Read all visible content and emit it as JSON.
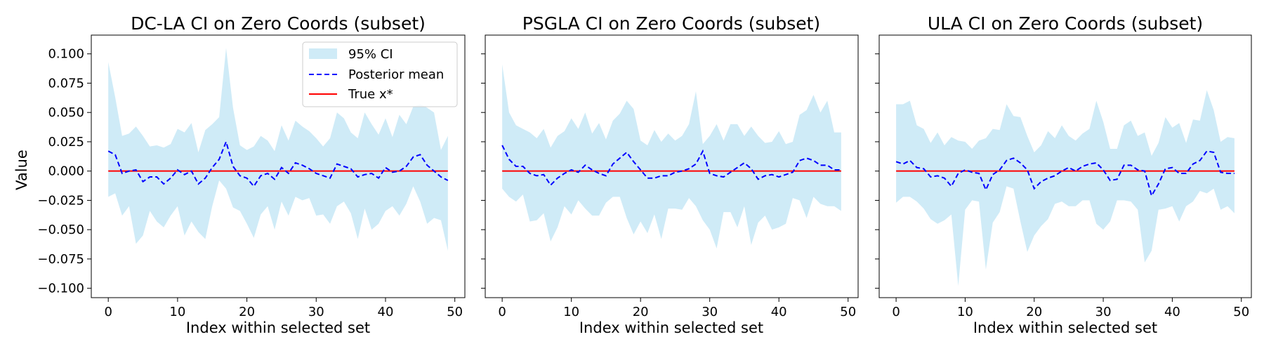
{
  "figure": {
    "ylabel": "Value",
    "ylim": [
      -0.108,
      0.116
    ],
    "yticks": [
      -0.1,
      -0.075,
      -0.05,
      -0.025,
      0.0,
      0.025,
      0.05,
      0.075,
      0.1
    ],
    "ytick_labels": [
      "−0.100",
      "−0.075",
      "−0.050",
      "−0.025",
      "0.000",
      "0.025",
      "0.050",
      "0.075",
      "0.100"
    ],
    "xlim": [
      -2.45,
      51.45
    ],
    "xticks": [
      0,
      10,
      20,
      30,
      40,
      50
    ],
    "xtick_labels": [
      "0",
      "10",
      "20",
      "30",
      "40",
      "50"
    ],
    "colors": {
      "ci_fill": "#87ceeb",
      "mean_line": "#0000ff",
      "true_line": "#ff0000"
    },
    "legend": {
      "placement": "top-right of first panel",
      "entries": [
        "95% CI",
        "Posterior mean",
        "True x*"
      ]
    }
  },
  "chart_data": [
    {
      "type": "area",
      "title": "DC-LA CI on Zero Coords (subset)",
      "xlabel": "Index within selected set",
      "ylabel": "Value",
      "x": [
        0,
        1,
        2,
        3,
        4,
        5,
        6,
        7,
        8,
        9,
        10,
        11,
        12,
        13,
        14,
        15,
        16,
        17,
        18,
        19,
        20,
        21,
        22,
        23,
        24,
        25,
        26,
        27,
        28,
        29,
        30,
        31,
        32,
        33,
        34,
        35,
        36,
        37,
        38,
        39,
        40,
        41,
        42,
        43,
        44,
        45,
        46,
        47,
        48,
        49
      ],
      "series": [
        {
          "name": "95% CI",
          "kind": "band",
          "upper": [
            0.093,
            0.063,
            0.03,
            0.032,
            0.038,
            0.03,
            0.021,
            0.022,
            0.02,
            0.023,
            0.036,
            0.033,
            0.041,
            0.016,
            0.035,
            0.04,
            0.046,
            0.105,
            0.054,
            0.022,
            0.018,
            0.021,
            0.03,
            0.026,
            0.017,
            0.039,
            0.026,
            0.043,
            0.038,
            0.034,
            0.028,
            0.021,
            0.028,
            0.05,
            0.045,
            0.033,
            0.028,
            0.05,
            0.04,
            0.031,
            0.045,
            0.029,
            0.048,
            0.04,
            0.055,
            0.057,
            0.054,
            0.05,
            0.018,
            0.03
          ],
          "lower": [
            -0.022,
            -0.019,
            -0.038,
            -0.03,
            -0.062,
            -0.055,
            -0.034,
            -0.043,
            -0.048,
            -0.038,
            -0.03,
            -0.055,
            -0.043,
            -0.052,
            -0.058,
            -0.03,
            -0.008,
            -0.015,
            -0.031,
            -0.034,
            -0.045,
            -0.057,
            -0.037,
            -0.03,
            -0.05,
            -0.026,
            -0.038,
            -0.022,
            -0.025,
            -0.023,
            -0.038,
            -0.037,
            -0.045,
            -0.03,
            -0.026,
            -0.036,
            -0.058,
            -0.032,
            -0.05,
            -0.045,
            -0.034,
            -0.03,
            -0.038,
            -0.028,
            -0.013,
            -0.026,
            -0.045,
            -0.04,
            -0.042,
            -0.068
          ]
        },
        {
          "name": "Posterior mean",
          "kind": "line",
          "values": [
            0.017,
            0.014,
            -0.002,
            0.0,
            0.001,
            -0.009,
            -0.005,
            -0.005,
            -0.011,
            -0.006,
            0.001,
            -0.003,
            0.0,
            -0.011,
            -0.006,
            0.003,
            0.01,
            0.025,
            0.004,
            -0.004,
            -0.006,
            -0.013,
            -0.004,
            -0.002,
            -0.007,
            0.003,
            -0.002,
            0.007,
            0.005,
            0.002,
            -0.002,
            -0.004,
            -0.006,
            0.006,
            0.004,
            0.002,
            -0.005,
            -0.003,
            -0.002,
            -0.006,
            0.003,
            -0.001,
            0.0,
            0.004,
            0.012,
            0.014,
            0.005,
            0.0,
            -0.005,
            -0.008
          ]
        },
        {
          "name": "True x*",
          "kind": "line",
          "values_constant": 0.0
        }
      ]
    },
    {
      "type": "area",
      "title": "PSGLA CI on Zero Coords (subset)",
      "xlabel": "Index within selected set",
      "ylabel": "",
      "x": [
        0,
        1,
        2,
        3,
        4,
        5,
        6,
        7,
        8,
        9,
        10,
        11,
        12,
        13,
        14,
        15,
        16,
        17,
        18,
        19,
        20,
        21,
        22,
        23,
        24,
        25,
        26,
        27,
        28,
        29,
        30,
        31,
        32,
        33,
        34,
        35,
        36,
        37,
        38,
        39,
        40,
        41,
        42,
        43,
        44,
        45,
        46,
        47,
        48,
        49
      ],
      "series": [
        {
          "name": "95% CI",
          "kind": "band",
          "upper": [
            0.091,
            0.05,
            0.039,
            0.036,
            0.033,
            0.028,
            0.036,
            0.02,
            0.03,
            0.034,
            0.045,
            0.036,
            0.05,
            0.032,
            0.041,
            0.027,
            0.043,
            0.049,
            0.06,
            0.053,
            0.026,
            0.022,
            0.035,
            0.025,
            0.032,
            0.026,
            0.03,
            0.04,
            0.068,
            0.023,
            0.03,
            0.04,
            0.026,
            0.04,
            0.04,
            0.03,
            0.038,
            0.03,
            0.024,
            0.025,
            0.034,
            0.023,
            0.025,
            0.048,
            0.052,
            0.065,
            0.05,
            0.06,
            0.033,
            0.033
          ],
          "lower": [
            -0.015,
            -0.022,
            -0.026,
            -0.02,
            -0.043,
            -0.042,
            -0.036,
            -0.06,
            -0.048,
            -0.03,
            -0.037,
            -0.025,
            -0.032,
            -0.038,
            -0.038,
            -0.027,
            -0.022,
            -0.022,
            -0.04,
            -0.054,
            -0.043,
            -0.053,
            -0.037,
            -0.058,
            -0.032,
            -0.032,
            -0.033,
            -0.023,
            -0.03,
            -0.042,
            -0.05,
            -0.066,
            -0.035,
            -0.035,
            -0.048,
            -0.03,
            -0.063,
            -0.044,
            -0.038,
            -0.05,
            -0.048,
            -0.045,
            -0.023,
            -0.025,
            -0.04,
            -0.022,
            -0.028,
            -0.03,
            -0.03,
            -0.034
          ]
        },
        {
          "name": "Posterior mean",
          "kind": "line",
          "values": [
            0.022,
            0.01,
            0.004,
            0.004,
            -0.002,
            -0.004,
            -0.003,
            -0.012,
            -0.006,
            -0.002,
            0.001,
            -0.001,
            0.005,
            0.001,
            -0.002,
            -0.004,
            0.006,
            0.011,
            0.016,
            0.008,
            0.001,
            -0.006,
            -0.006,
            -0.004,
            -0.004,
            -0.001,
            0.0,
            0.002,
            0.006,
            0.017,
            -0.002,
            -0.004,
            -0.005,
            -0.001,
            0.003,
            0.007,
            0.002,
            -0.007,
            -0.004,
            -0.003,
            -0.005,
            -0.003,
            -0.001,
            0.009,
            0.011,
            0.009,
            0.005,
            0.005,
            0.001,
            0.001
          ]
        },
        {
          "name": "True x*",
          "kind": "line",
          "values_constant": 0.0
        }
      ]
    },
    {
      "type": "area",
      "title": "ULA CI on Zero Coords (subset)",
      "xlabel": "Index within selected set",
      "ylabel": "",
      "x": [
        0,
        1,
        2,
        3,
        4,
        5,
        6,
        7,
        8,
        9,
        10,
        11,
        12,
        13,
        14,
        15,
        16,
        17,
        18,
        19,
        20,
        21,
        22,
        23,
        24,
        25,
        26,
        27,
        28,
        29,
        30,
        31,
        32,
        33,
        34,
        35,
        36,
        37,
        38,
        39,
        40,
        41,
        42,
        43,
        44,
        45,
        46,
        47,
        48,
        49
      ],
      "series": [
        {
          "name": "95% CI",
          "kind": "band",
          "upper": [
            0.057,
            0.057,
            0.06,
            0.039,
            0.036,
            0.024,
            0.033,
            0.022,
            0.029,
            0.026,
            0.025,
            0.019,
            0.026,
            0.028,
            0.036,
            0.035,
            0.057,
            0.047,
            0.046,
            0.03,
            0.016,
            0.022,
            0.034,
            0.028,
            0.039,
            0.03,
            0.026,
            0.032,
            0.036,
            0.06,
            0.042,
            0.019,
            0.019,
            0.039,
            0.043,
            0.03,
            0.033,
            0.013,
            0.024,
            0.046,
            0.037,
            0.041,
            0.024,
            0.044,
            0.043,
            0.069,
            0.052,
            0.025,
            0.029,
            0.028
          ],
          "lower": [
            -0.027,
            -0.022,
            -0.022,
            -0.026,
            -0.032,
            -0.041,
            -0.045,
            -0.042,
            -0.037,
            -0.098,
            -0.033,
            -0.025,
            -0.026,
            -0.084,
            -0.044,
            -0.035,
            -0.013,
            -0.015,
            -0.043,
            -0.069,
            -0.055,
            -0.047,
            -0.041,
            -0.028,
            -0.026,
            -0.03,
            -0.03,
            -0.025,
            -0.025,
            -0.045,
            -0.05,
            -0.043,
            -0.025,
            -0.025,
            -0.026,
            -0.033,
            -0.078,
            -0.068,
            -0.033,
            -0.032,
            -0.03,
            -0.043,
            -0.03,
            -0.026,
            -0.017,
            -0.019,
            -0.015,
            -0.033,
            -0.03,
            -0.036
          ]
        },
        {
          "name": "Posterior mean",
          "kind": "line",
          "values": [
            0.008,
            0.006,
            0.009,
            0.003,
            0.002,
            -0.005,
            -0.004,
            -0.006,
            -0.013,
            -0.002,
            0.001,
            -0.001,
            -0.002,
            -0.016,
            -0.003,
            0.001,
            0.009,
            0.011,
            0.007,
            0.001,
            -0.015,
            -0.009,
            -0.006,
            -0.004,
            0.0,
            0.003,
            0.0,
            0.004,
            0.006,
            0.007,
            0.001,
            -0.008,
            -0.007,
            0.005,
            0.005,
            0.001,
            0.0,
            -0.021,
            -0.011,
            0.002,
            0.003,
            -0.002,
            -0.002,
            0.006,
            0.009,
            0.017,
            0.016,
            -0.001,
            -0.002,
            -0.002
          ]
        },
        {
          "name": "True x*",
          "kind": "line",
          "values_constant": 0.0
        }
      ]
    }
  ]
}
